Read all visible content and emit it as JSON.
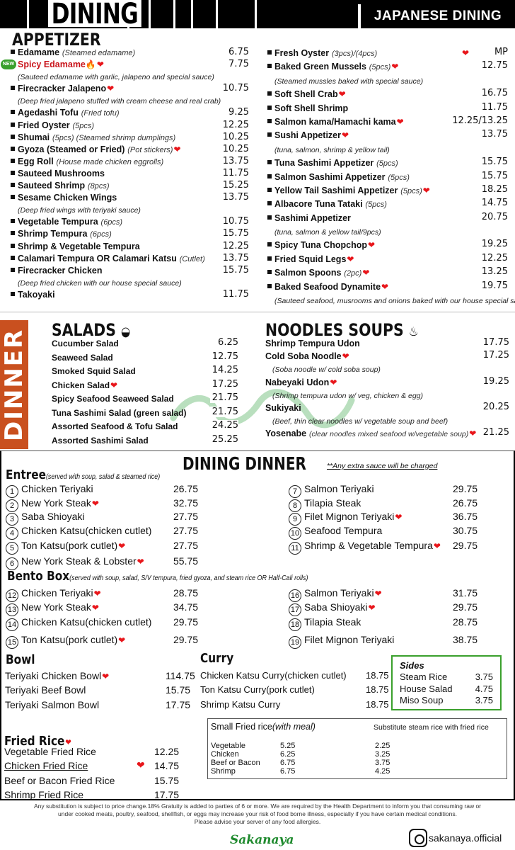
{
  "header": {
    "left_title": "DINING",
    "right_title": "JAPANESE DINING"
  },
  "colors": {
    "heart": "#e8161b",
    "dinner_band": "#c9501f",
    "new_badge": "#3aa02c",
    "sides_border": "#3aa02c"
  },
  "appetizer": {
    "title": "APPETIZER",
    "new_badge": "NEW",
    "left": [
      {
        "name": "Edamame",
        "note": "(Steamed edamame)",
        "price": "6.75"
      },
      {
        "name": "Spicy Edamame",
        "price": "7.75",
        "heart": true,
        "spicy": true,
        "new": true,
        "desc": "(Sauteed edamame with garlic, jalapeno and special sauce)"
      },
      {
        "name": "Firecracker Jalapeno",
        "price": "10.75",
        "heart": true,
        "desc": "(Deep fried jalapeno stuffed with cream cheese and real crab)"
      },
      {
        "name": "Agedashi Tofu",
        "note": "(Fried tofu)",
        "price": "9.25"
      },
      {
        "name": "Fried Oyster",
        "note": "(5pcs)",
        "price": "12.25"
      },
      {
        "name": "Shumai",
        "note": "(5pcs) (Steamed shrimp dumplings)",
        "price": "10.25"
      },
      {
        "name": "Gyoza (Steamed or Fried)",
        "note": "(Pot stickers)",
        "price": "10.25",
        "heart": true
      },
      {
        "name": "Egg Roll",
        "note": "(House made chicken eggrolls)",
        "price": "13.75"
      },
      {
        "name": "Sauteed Mushrooms",
        "price": "11.75"
      },
      {
        "name": "Sauteed Shrimp",
        "note": "(8pcs)",
        "price": "15.25"
      },
      {
        "name": "Sesame Chicken Wings",
        "price": "13.75",
        "desc": "(Deep fried wings with teriyaki sauce)"
      },
      {
        "name": "Vegetable Tempura",
        "note": "(6pcs)",
        "price": "10.75"
      },
      {
        "name": "Shrimp Tempura",
        "note": "(6pcs)",
        "price": "15.75"
      },
      {
        "name": "Shrimp & Vegetable Tempura",
        "price": "12.25"
      },
      {
        "name": "Calamari Tempura OR Calamari Katsu",
        "note": "(Cutlet)",
        "price": "13.75"
      },
      {
        "name": "Firecracker Chicken",
        "price": "15.75",
        "desc": "(Deep fried chicken with our house special sauce)"
      },
      {
        "name": "Takoyaki",
        "price": "11.75"
      }
    ],
    "right": [
      {
        "name": "Fresh Oyster",
        "note": "(3pcs)/(4pcs)",
        "price": "MP",
        "heart": true
      },
      {
        "name": "Baked Green Mussels",
        "note": "(5pcs)",
        "price": "12.75",
        "heart": true,
        "desc": "(Steamed mussles baked with special sauce)"
      },
      {
        "name": "Soft Shell Crab",
        "price": "16.75",
        "heart": true
      },
      {
        "name": "Soft Shell Shrimp",
        "price": "11.75"
      },
      {
        "name": "Salmon kama/Hamachi kama",
        "price": "12.25/13.25",
        "heart": true
      },
      {
        "name": "Sushi Appetizer",
        "price": "13.75",
        "heart": true,
        "desc": "(tuna, salmon, shrimp & yellow tail)"
      },
      {
        "name": "Tuna Sashimi Appetizer",
        "note": "(5pcs)",
        "price": "15.75"
      },
      {
        "name": "Salmon Sashimi Appetizer",
        "note": "(5pcs)",
        "price": "15.75"
      },
      {
        "name": "Yellow Tail Sashimi Appetizer",
        "note": "(5pcs)",
        "price": "18.25",
        "heart": true
      },
      {
        "name": "Albacore Tuna Tataki",
        "note": "(5pcs)",
        "price": "14.75"
      },
      {
        "name": "Sashimi Appetizer",
        "price": "20.75",
        "desc": "(tuna, salmon & yellow tail/9pcs)"
      },
      {
        "name": "Spicy Tuna Chopchop",
        "price": "19.25",
        "heart": true
      },
      {
        "name": "Fried Squid Legs",
        "price": "12.25",
        "heart": true
      },
      {
        "name": "Salmon Spoons",
        "note": "(2pc)",
        "price": "13.25",
        "heart": true
      },
      {
        "name": "Baked Seafood Dynamite",
        "price": "19.75",
        "heart": true,
        "desc": "(Sauteed seafood, musrooms and onions baked with our house special sauce)"
      }
    ]
  },
  "dinner_band": "DINNER",
  "watermark": "Sakanaya",
  "salads": {
    "title": "SALADS",
    "items": [
      {
        "name": "Cucumber Salad",
        "price": "6.25"
      },
      {
        "name": "Seaweed Salad",
        "price": "12.75"
      },
      {
        "name": "Smoked Squid Salad",
        "price": "14.25"
      },
      {
        "name": "Chicken Salad",
        "price": "17.25",
        "heart": true
      },
      {
        "name": "Spicy Seafood Seaweed Salad",
        "price": "21.75"
      },
      {
        "name": "Tuna Sashimi Salad (green salad)",
        "price": "21.75"
      },
      {
        "name": "Assorted Seafood & Tofu Salad",
        "price": "24.25"
      },
      {
        "name": "Assorted Sashimi Salad",
        "price": "25.25"
      }
    ]
  },
  "noodles": {
    "title": "NOODLES SOUPS",
    "items": [
      {
        "name": "Shrimp Tempura Udon",
        "price": "17.75"
      },
      {
        "name": "Cold Soba Noodle",
        "price": "17.25",
        "heart": true,
        "desc": "(Soba noodle w/ cold soba soup)"
      },
      {
        "name": "Nabeyaki Udon",
        "price": "19.25",
        "heart": true,
        "desc": "(Shrimp tempura udon w/ veg, chicken & egg)"
      },
      {
        "name": "Sukiyaki",
        "price": "20.25",
        "desc": "(Beef, thin clear noodles w/ vegetable soup and beef)"
      },
      {
        "name": "Yosenabe",
        "note": "(clear noodles mixed seafood w/vegetable soup)",
        "price": "21.25",
        "heart": true
      }
    ]
  },
  "dining_dinner": {
    "title": "DINING DINNER",
    "note": "**Any extra sauce will be charged",
    "entree": {
      "title": "Entree",
      "note": "(served with soup, salad & steamed rice)",
      "items": [
        {
          "num": "1",
          "name": "Chicken Teriyaki",
          "price": "26.75"
        },
        {
          "num": "2",
          "name": "New York Steak",
          "price": "32.75",
          "heart": true
        },
        {
          "num": "3",
          "name": "Saba Shioyaki",
          "price": "27.75"
        },
        {
          "num": "4",
          "name": "Chicken Katsu(chicken cutlet)",
          "price": "27.75"
        },
        {
          "num": "5",
          "name": "Ton Katsu(pork cutlet)",
          "price": "27.75",
          "heart": true
        },
        {
          "num": "6",
          "name": "New York Steak & Lobster",
          "price": "55.75",
          "heart": true
        },
        {
          "num": "7",
          "name": "Salmon Teriyaki",
          "price": "29.75"
        },
        {
          "num": "8",
          "name": "Tilapia Steak",
          "price": "26.75"
        },
        {
          "num": "9",
          "name": "Filet Mignon Teriyaki",
          "price": "36.75",
          "heart": true
        },
        {
          "num": "10",
          "name": "Seafood Tempura",
          "price": "30.75"
        },
        {
          "num": "11",
          "name": "Shrimp & Vegetable Tempura",
          "price": "29.75",
          "heart": true
        }
      ]
    },
    "bento": {
      "title": "Bento Box",
      "note": "(served with soup, salad, S/V tempura, fried gyoza, and steam rice OR Half-Cali rolls)",
      "items": [
        {
          "num": "12",
          "name": "Chicken Teriyaki",
          "price": "28.75",
          "heart": true
        },
        {
          "num": "13",
          "name": "New York Steak",
          "price": "34.75",
          "heart": true
        },
        {
          "num": "14",
          "name": "Chicken Katsu(chicken cutlet)",
          "price": "29.75"
        },
        {
          "num": "15",
          "name": "Ton Katsu(pork cutlet)",
          "price": "29.75",
          "heart": true
        },
        {
          "num": "16",
          "name": "Salmon Teriyaki",
          "price": "31.75",
          "heart": true
        },
        {
          "num": "17",
          "name": "Saba Shioyaki",
          "price": "29.75",
          "heart": true
        },
        {
          "num": "18",
          "name": "Tilapia Steak",
          "price": "28.75"
        },
        {
          "num": "19",
          "name": "Filet Mignon Teriyaki",
          "price": "38.75"
        }
      ]
    },
    "bowl": {
      "title": "Bowl",
      "items": [
        {
          "name": "Teriyaki Chicken Bowl",
          "price": "114.75",
          "heart": true
        },
        {
          "name": "Teriyaki Beef Bowl",
          "price": "15.75"
        },
        {
          "name": "Teriyaki Salmon Bowl",
          "price": "17.75"
        }
      ]
    },
    "curry": {
      "title": "Curry",
      "items": [
        {
          "name": "Chicken Katsu Curry",
          "note": "(chicken cutlet)",
          "price": "18.75"
        },
        {
          "name": "Ton Katsu Curry",
          "note": "(pork cutlet)",
          "price": "18.75"
        },
        {
          "name": "Shrimp Katsu Curry",
          "price": "18.75"
        }
      ]
    },
    "sides": {
      "title": "Sides",
      "items": [
        {
          "name": "Steam Rice",
          "price": "3.75"
        },
        {
          "name": "House Salad",
          "price": "4.75"
        },
        {
          "name": "Miso Soup",
          "price": "3.75"
        }
      ]
    },
    "fried_rice": {
      "title": "Fried Rice",
      "items": [
        {
          "name": "Vegetable Fried Rice",
          "price": "12.25"
        },
        {
          "name": "Chicken Fried Rice",
          "price": "14.75",
          "heart": true
        },
        {
          "name": "Beef or Bacon Fried Rice",
          "price": "15.75"
        },
        {
          "name": "Shrimp Fried Rice",
          "price": "17.75"
        }
      ]
    },
    "small_fried_rice": {
      "title": "Small Fried rice",
      "title_note": "(with meal)",
      "sub_title": "Substitute steam rice with fried rice",
      "items": [
        {
          "name": "Vegetable",
          "price": "5.25",
          "sub": "2.25"
        },
        {
          "name": "Chicken",
          "price": "6.25",
          "sub": "3.25"
        },
        {
          "name": "Beef or Bacon",
          "price": "6.75",
          "sub": "3.75"
        },
        {
          "name": "Shrimp",
          "price": "6.75",
          "sub": "4.25"
        }
      ]
    }
  },
  "footer": {
    "lines": [
      "Any substitution is subject to price change.18% Gratuity is added to parties of 6 or more. We are required by the Health Department to inform you that consuming raw or",
      "under cooked meats, poultry, seafood, shellfish, or eggs may increase your risk of food borne illness, especially if you have certain medical conditions.",
      "Please advise your server of any food allergies."
    ],
    "logo": "Sakanaya",
    "instagram": "sakanaya.official"
  }
}
